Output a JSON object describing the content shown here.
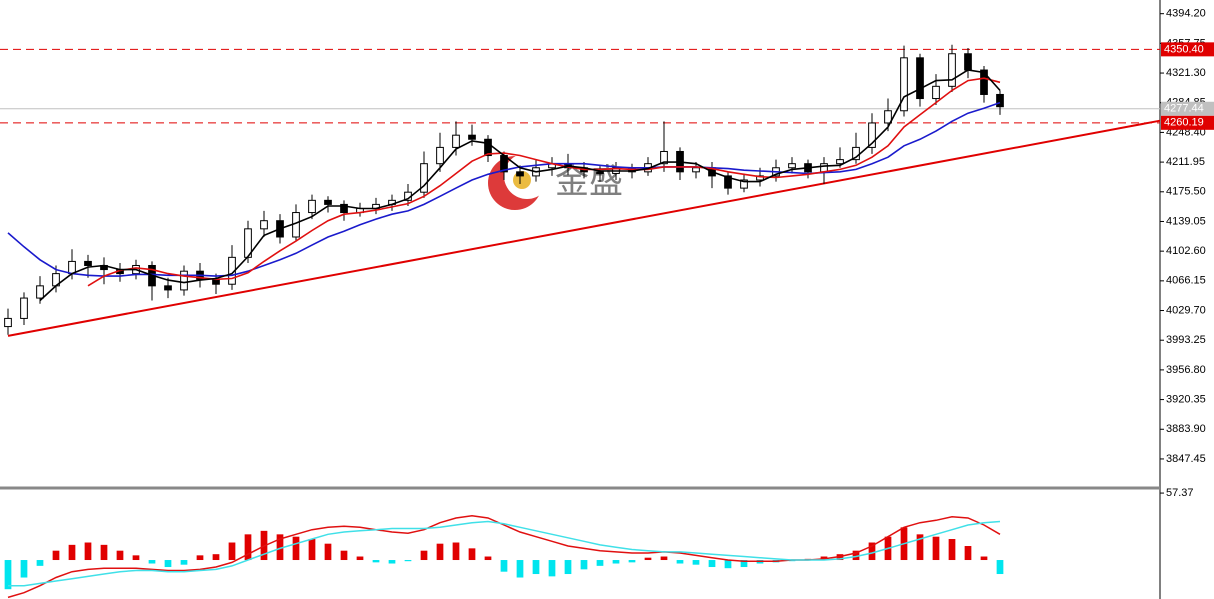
{
  "chart_data": {
    "type": "candlestick",
    "xlim": [
      -0.5,
      72
    ],
    "ylim": [
      3813,
      4411
    ],
    "yticks": [
      {
        "value": 4394.2,
        "label": "4394.20"
      },
      4357.75,
      {
        "value": 4321.3,
        "label": "4321.30"
      },
      4284.85,
      {
        "value": 4248.4,
        "label": "4248.40"
      },
      4211.95,
      {
        "value": 4175.5,
        "label": "4175.50"
      },
      4139.05,
      {
        "value": 4102.6,
        "label": "4102.60"
      },
      4066.15,
      {
        "value": 4029.7,
        "label": "4029.70"
      },
      3993.25,
      {
        "value": 3956.8,
        "label": "3956.80"
      },
      3920.35,
      {
        "value": 3883.9,
        "label": "3883.90"
      },
      3847.45
    ],
    "open": [
      4010,
      4020,
      4045,
      4060,
      4075,
      4090,
      4085,
      4080,
      4075,
      4085,
      4060,
      4055,
      4078,
      4068,
      4062,
      4095,
      4130,
      4140,
      4120,
      4150,
      4165,
      4160,
      4150,
      4155,
      4160,
      4165,
      4175,
      4210,
      4230,
      4245,
      4240,
      4220,
      4200,
      4195,
      4205,
      4210,
      4205,
      4200,
      4198,
      4205,
      4200,
      4210,
      4225,
      4200,
      4205,
      4195,
      4180,
      4190,
      4195,
      4205,
      4210,
      4200,
      4210,
      4215,
      4230,
      4260,
      4275,
      4340,
      4290,
      4305,
      4345,
      4325,
      4295
    ],
    "high": [
      4032,
      4052,
      4072,
      4085,
      4105,
      4098,
      4095,
      4088,
      4092,
      4090,
      4070,
      4085,
      4088,
      4075,
      4110,
      4140,
      4152,
      4148,
      4160,
      4172,
      4170,
      4165,
      4162,
      4168,
      4172,
      4185,
      4225,
      4248,
      4262,
      4258,
      4245,
      4225,
      4208,
      4215,
      4218,
      4222,
      4212,
      4207,
      4212,
      4210,
      4218,
      4262,
      4230,
      4212,
      4212,
      4200,
      4198,
      4205,
      4215,
      4218,
      4215,
      4218,
      4230,
      4248,
      4272,
      4290,
      4355,
      4345,
      4320,
      4356,
      4352,
      4330,
      4300
    ],
    "low": [
      4000,
      4012,
      4038,
      4052,
      4068,
      4070,
      4062,
      4065,
      4068,
      4042,
      4045,
      4048,
      4058,
      4050,
      4055,
      4088,
      4120,
      4112,
      4115,
      4142,
      4150,
      4140,
      4145,
      4148,
      4152,
      4158,
      4168,
      4200,
      4220,
      4232,
      4212,
      4190,
      4185,
      4188,
      4195,
      4196,
      4192,
      4188,
      4190,
      4192,
      4195,
      4200,
      4190,
      4192,
      4180,
      4172,
      4175,
      4182,
      4188,
      4198,
      4192,
      4185,
      4205,
      4210,
      4222,
      4250,
      4268,
      4280,
      4282,
      4298,
      4315,
      4285,
      4270
    ],
    "close": [
      4020,
      4045,
      4060,
      4075,
      4090,
      4085,
      4080,
      4075,
      4085,
      4060,
      4055,
      4078,
      4068,
      4062,
      4095,
      4130,
      4140,
      4120,
      4150,
      4165,
      4160,
      4150,
      4155,
      4160,
      4165,
      4175,
      4210,
      4230,
      4245,
      4240,
      4220,
      4200,
      4195,
      4205,
      4210,
      4205,
      4200,
      4198,
      4205,
      4200,
      4210,
      4225,
      4200,
      4205,
      4195,
      4180,
      4190,
      4195,
      4205,
      4210,
      4200,
      4210,
      4215,
      4230,
      4260,
      4275,
      4340,
      4290,
      4305,
      4345,
      4325,
      4295,
      4280
    ],
    "series": [
      {
        "color": "#1a1acc",
        "values": [
          4125,
          4108,
          4092,
          4080,
          4075,
          4073,
          4072,
          4072,
          4074,
          4074,
          4073,
          4073,
          4073,
          4072,
          4073,
          4078,
          4085,
          4092,
          4100,
          4110,
          4120,
          4127,
          4135,
          4142,
          4148,
          4152,
          4160,
          4170,
          4180,
          4190,
          4197,
          4202,
          4206,
          4208,
          4210,
          4210,
          4210,
          4208,
          4206,
          4205,
          4205,
          4206,
          4206,
          4206,
          4205,
          4204,
          4202,
          4201,
          4200,
          4199,
          4198,
          4199,
          4200,
          4203,
          4210,
          4218,
          4232,
          4240,
          4250,
          4262,
          4272,
          4278,
          4285
        ]
      },
      {
        "color": "#e01010",
        "values": [
          null,
          null,
          null,
          null,
          null,
          4060,
          4072,
          4079,
          4082,
          4080,
          4075,
          4072,
          4070,
          4068,
          4069,
          4076,
          4090,
          4103,
          4115,
          4128,
          4140,
          4148,
          4150,
          4153,
          4157,
          4161,
          4170,
          4183,
          4198,
          4213,
          4222,
          4223,
          4220,
          4215,
          4210,
          4206,
          4203,
          4203,
          4204,
          4203,
          4203,
          4206,
          4206,
          4206,
          4204,
          4200,
          4197,
          4194,
          4193,
          4195,
          4197,
          4200,
          4203,
          4208,
          4218,
          4232,
          4255,
          4270,
          4285,
          4300,
          4312,
          4315,
          4310
        ]
      },
      {
        "color": "#000000",
        "values": [
          null,
          null,
          4042,
          4060,
          4075,
          4083,
          4085,
          4080,
          4080,
          4073,
          4067,
          4064,
          4067,
          4069,
          4075,
          4096,
          4122,
          4130,
          4137,
          4145,
          4158,
          4158,
          4155,
          4155,
          4160,
          4167,
          4183,
          4205,
          4228,
          4238,
          4235,
          4220,
          4205,
          4200,
          4203,
          4207,
          4205,
          4201,
          4201,
          4201,
          4204,
          4212,
          4212,
          4210,
          4200,
          4193,
          4188,
          4188,
          4197,
          4203,
          4205,
          4207,
          4208,
          4218,
          4235,
          4255,
          4292,
          4302,
          4312,
          4313,
          4325,
          4322,
          4300
        ]
      }
    ],
    "levels": [
      {
        "value": 4350.4,
        "label": "4350.40",
        "color": "#e00000",
        "style": "dashed"
      },
      {
        "value": 4277.44,
        "label": "4277.44",
        "color": "#c0c0c0",
        "style": "solid"
      },
      {
        "value": 4260.19,
        "label": "4260.19",
        "color": "#e00000",
        "style": "dashed"
      }
    ],
    "trend_line": {
      "x": [
        0,
        72
      ],
      "y": [
        3998.6,
        4262.8
      ],
      "color": "#e00000"
    },
    "watermark": "金盛",
    "indicator": {
      "type": "macd",
      "ylim": [
        -33.4,
        60
      ],
      "yticks": [
        57.37
      ],
      "up_color": "#e00000",
      "down_color": "#00e5ee",
      "histogram": [
        -25,
        -15,
        -5,
        8,
        13,
        15,
        13,
        8,
        4,
        -3,
        -6,
        -4,
        4,
        5,
        15,
        22,
        25,
        22,
        20,
        18,
        14,
        8,
        3,
        -2,
        -3,
        -1,
        8,
        14,
        15,
        10,
        3,
        -10,
        -15,
        -12,
        -14,
        -12,
        -8,
        -5,
        -3,
        -2,
        2,
        3,
        -3,
        -4,
        -6,
        -7,
        -6,
        -3,
        -2,
        -1,
        1,
        3,
        5,
        8,
        15,
        20,
        28,
        22,
        20,
        18,
        12,
        3,
        -12
      ],
      "lines": [
        {
          "color": "#e01010",
          "values": [
            -32,
            -28,
            -22,
            -15,
            -10,
            -8,
            -7,
            -7,
            -7,
            -8,
            -9,
            -9,
            -8,
            -6,
            -2,
            5,
            12,
            18,
            22,
            26,
            28,
            29,
            28,
            26,
            24,
            23,
            26,
            32,
            36,
            38,
            36,
            30,
            24,
            20,
            16,
            12,
            10,
            8,
            7,
            6,
            6,
            7,
            6,
            4,
            2,
            0,
            -1,
            -1,
            -1,
            0,
            0,
            1,
            3,
            6,
            12,
            20,
            28,
            32,
            34,
            37,
            36,
            30,
            22
          ]
        },
        {
          "color": "#40e0e8",
          "values": [
            -22,
            -22,
            -20,
            -18,
            -16,
            -14,
            -12,
            -10,
            -9,
            -9,
            -10,
            -10,
            -9,
            -8,
            -5,
            0,
            5,
            10,
            14,
            18,
            22,
            24,
            25,
            26,
            27,
            27,
            27,
            28,
            30,
            32,
            33,
            31,
            28,
            25,
            22,
            19,
            16,
            13,
            11,
            9,
            8,
            7,
            7,
            6,
            5,
            4,
            3,
            2,
            1,
            0,
            0,
            0,
            1,
            3,
            6,
            10,
            14,
            18,
            22,
            26,
            30,
            32,
            33
          ]
        }
      ]
    }
  }
}
